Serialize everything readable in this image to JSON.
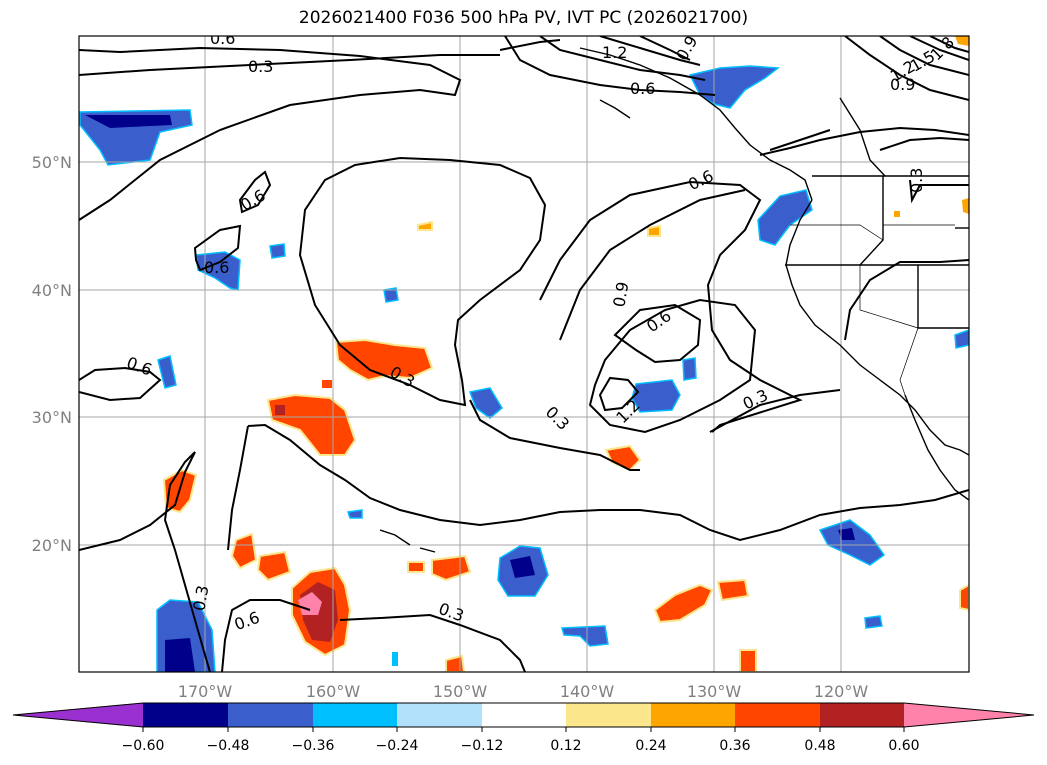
{
  "title": "2026021400 F036 500 hPa PV, IVT PC (2026021700)",
  "map": {
    "lat_labels": [
      "50°N",
      "40°N",
      "30°N",
      "20°N"
    ],
    "lon_labels": [
      "170°W",
      "160°W",
      "150°W",
      "140°W",
      "130°W",
      "120°W"
    ],
    "contour_labels": [
      "0.6",
      "0.3",
      "1.2",
      "0.9",
      "0.6",
      "0.9",
      "1.5",
      "1.2",
      "0.3",
      "1.8",
      "0.6",
      "0.6",
      "0.6",
      "0.9",
      "0.6",
      "0.3",
      "1.2",
      "0.3",
      "0.3",
      "0.3",
      "0.6",
      "0.3",
      "0.6"
    ]
  },
  "colorbar": {
    "ticks": [
      "−0.60",
      "−0.48",
      "−0.36",
      "−0.24",
      "−0.12",
      "0.12",
      "0.24",
      "0.36",
      "0.48",
      "0.60"
    ],
    "colors": [
      "#9b30d0",
      "#00008b",
      "#3a5fcd",
      "#00bfff",
      "#b0e0fa",
      "#ffffff",
      "#fce68b",
      "#ffa500",
      "#ff4500",
      "#b22222",
      "#ff82ab"
    ]
  }
}
